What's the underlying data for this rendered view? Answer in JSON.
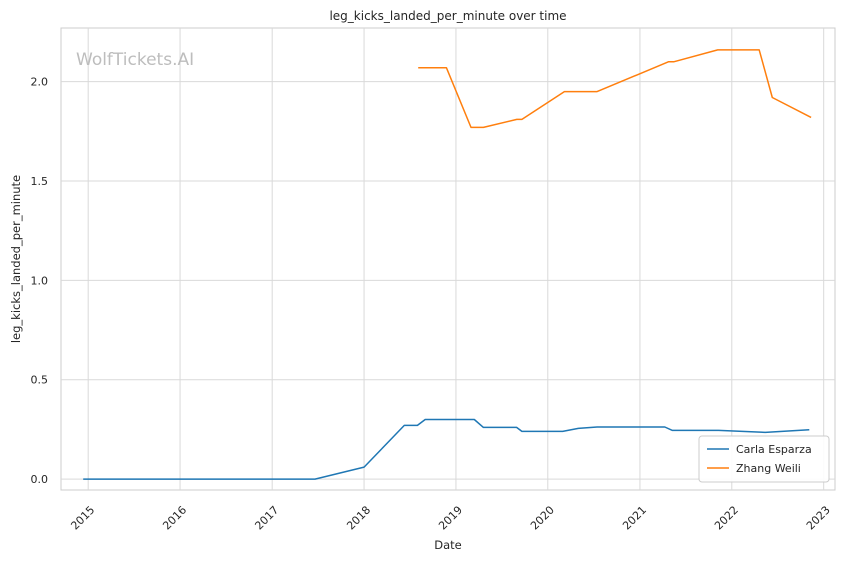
{
  "chart_data": {
    "type": "line",
    "title": "leg_kicks_landed_per_minute over time",
    "xlabel": "Date",
    "ylabel": "leg_kicks_landed_per_minute",
    "watermark": "WolfTickets.AI",
    "x_ticks": [
      "2015",
      "2016",
      "2017",
      "2018",
      "2019",
      "2020",
      "2021",
      "2022",
      "2023"
    ],
    "y_ticks": [
      "0.0",
      "0.5",
      "1.0",
      "1.5",
      "2.0"
    ],
    "xlim": [
      "2014-09-15",
      "2023-02-15"
    ],
    "ylim": [
      -0.055,
      2.27
    ],
    "grid": true,
    "legend_position": "bottom-right",
    "series": [
      {
        "name": "Carla Esparza",
        "color": "#1f77b4",
        "points": [
          [
            "2014-12-12",
            0.0
          ],
          [
            "2015-06-01",
            0.0
          ],
          [
            "2016-01-01",
            0.0
          ],
          [
            "2017-01-01",
            0.0
          ],
          [
            "2017-06-20",
            0.0
          ],
          [
            "2018-01-01",
            0.06
          ],
          [
            "2018-06-10",
            0.27
          ],
          [
            "2018-08-01",
            0.27
          ],
          [
            "2018-09-01",
            0.3
          ],
          [
            "2019-03-15",
            0.3
          ],
          [
            "2019-04-20",
            0.26
          ],
          [
            "2019-08-30",
            0.26
          ],
          [
            "2019-09-20",
            0.24
          ],
          [
            "2020-02-29",
            0.24
          ],
          [
            "2020-05-01",
            0.255
          ],
          [
            "2020-07-15",
            0.262
          ],
          [
            "2021-04-10",
            0.262
          ],
          [
            "2021-05-10",
            0.245
          ],
          [
            "2021-11-10",
            0.245
          ],
          [
            "2022-05-14",
            0.235
          ],
          [
            "2022-11-05",
            0.248
          ]
        ]
      },
      {
        "name": "Zhang Weili",
        "color": "#ff7f0e",
        "points": [
          [
            "2018-08-04",
            2.07
          ],
          [
            "2018-11-24",
            2.07
          ],
          [
            "2019-03-02",
            1.77
          ],
          [
            "2019-04-20",
            1.77
          ],
          [
            "2019-08-31",
            1.81
          ],
          [
            "2019-09-20",
            1.81
          ],
          [
            "2020-03-07",
            1.95
          ],
          [
            "2020-07-15",
            1.95
          ],
          [
            "2021-04-24",
            2.1
          ],
          [
            "2021-05-15",
            2.1
          ],
          [
            "2021-11-06",
            2.16
          ],
          [
            "2022-04-20",
            2.16
          ],
          [
            "2022-06-11",
            1.92
          ],
          [
            "2022-11-12",
            1.82
          ]
        ]
      }
    ]
  }
}
